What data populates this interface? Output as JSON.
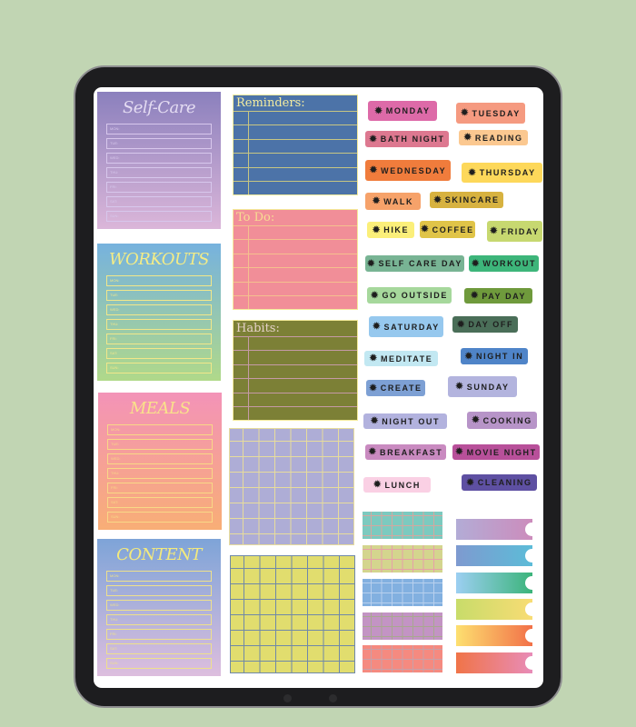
{
  "days": [
    "MON:",
    "TUE:",
    "WED:",
    "THU:",
    "FRI:",
    "SAT:",
    "SUN:"
  ],
  "planners": [
    {
      "title": "Self-Care",
      "gradient": [
        "#8b80bd",
        "#dbb6d9"
      ],
      "title_color": "#e4dcf2",
      "line_color": "#d7c7ec"
    },
    {
      "title": "WORKOUTS",
      "gradient": [
        "#76b2de",
        "#b0d98a"
      ],
      "title_color": "#f4ec86",
      "line_color": "#f1e78a"
    },
    {
      "title": "MEALS",
      "gradient": [
        "#f393b8",
        "#f8ae76"
      ],
      "title_color": "#f9e28a",
      "line_color": "#f8d886"
    },
    {
      "title": "CONTENT",
      "gradient": [
        "#7ea4d8",
        "#ddbede"
      ],
      "title_color": "#f4ea7c",
      "line_color": "#eee08c"
    }
  ],
  "lists": [
    {
      "title": "Reminders:",
      "bg": "#4c73a8",
      "line": "#c7c683",
      "text": "#f3eca0"
    },
    {
      "title": "To Do:",
      "bg": "#f18e98",
      "line": "#f4c08e",
      "text": "#f7dd92"
    },
    {
      "title": "Habits:",
      "bg": "#7c8036",
      "line": "#c59aa6",
      "text": "#e6d2c8"
    }
  ],
  "grids": [
    {
      "bg": "#aeadd6",
      "line": "#e7dc9c"
    },
    {
      "bg": "#e1dd6e",
      "line": "#6f88a8"
    }
  ],
  "stickers": [
    {
      "label": "MONDAY",
      "color": "#dd6aa8"
    },
    {
      "label": "TUESDAY",
      "color": "#f59a80"
    },
    {
      "label": "BATH NIGHT",
      "color": "#dd7890"
    },
    {
      "label": "READING",
      "color": "#fbc890"
    },
    {
      "label": "WEDNESDAY",
      "color": "#f07c3c"
    },
    {
      "label": "THURSDAY",
      "color": "#fdd85a"
    },
    {
      "label": "WALK",
      "color": "#f6a26a"
    },
    {
      "label": "SKINCARE",
      "color": "#d7b240"
    },
    {
      "label": "HIKE",
      "color": "#fbef7a"
    },
    {
      "label": "COFFEE",
      "color": "#e0c448"
    },
    {
      "label": "FRIDAY",
      "color": "#c7d870"
    },
    {
      "label": "SELF CARE DAY",
      "color": "#78b494"
    },
    {
      "label": "WORKOUT",
      "color": "#3db57a"
    },
    {
      "label": "GO OUTSIDE",
      "color": "#a6d89c"
    },
    {
      "label": "PAY DAY",
      "color": "#6f9a3c"
    },
    {
      "label": "SATURDAY",
      "color": "#96c8ee"
    },
    {
      "label": "DAY OFF",
      "color": "#4a6e58"
    },
    {
      "label": "MEDITATE",
      "color": "#c2e8f2"
    },
    {
      "label": "NIGHT IN",
      "color": "#4f84c8"
    },
    {
      "label": "CREATE",
      "color": "#7da0d4"
    },
    {
      "label": "SUNDAY",
      "color": "#b3b4de"
    },
    {
      "label": "NIGHT OUT",
      "color": "#b2b2de"
    },
    {
      "label": "COOKING",
      "color": "#b794c8"
    },
    {
      "label": "BREAKFAST",
      "color": "#c98ac0"
    },
    {
      "label": "MOVIE NIGHT",
      "color": "#b8509a"
    },
    {
      "label": "LUNCH",
      "color": "#fad0e4"
    },
    {
      "label": "CLEANING",
      "color": "#5e50a2"
    }
  ],
  "sticker_icon": "✹",
  "washi_grids": [
    {
      "bg": "#7ccabf",
      "line": "#d4a8a0"
    },
    {
      "bg": "#d4d58e",
      "line": "#e6a0a8"
    },
    {
      "bg": "#82b0e0",
      "line": "#b8d0ee"
    },
    {
      "bg": "#c394c4",
      "line": "#a8a890"
    },
    {
      "bg": "#f58a80",
      "line": "#c8a0a8"
    }
  ],
  "washi_tabs": [
    [
      "#b3acd6",
      "#cc8cbc"
    ],
    [
      "#7e9ad0",
      "#5cbcd8"
    ],
    [
      "#9ccff2",
      "#3bb47a"
    ],
    [
      "#c8dc6a",
      "#f8dc74"
    ],
    [
      "#fde070",
      "#f27048"
    ],
    [
      "#f07448",
      "#e88cb8"
    ]
  ]
}
